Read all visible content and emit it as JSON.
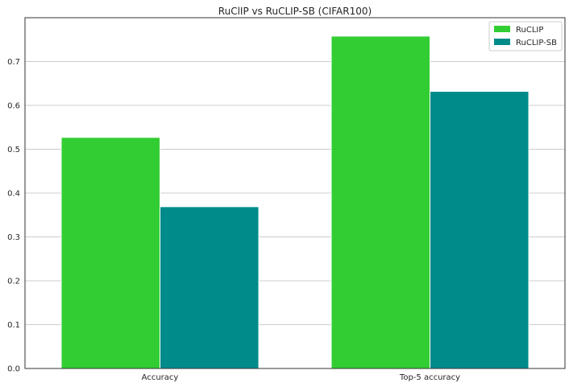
{
  "chart_data": {
    "type": "bar",
    "title": "RuClIP vs RuCLIP-SB (CIFAR100)",
    "xlabel": "",
    "ylabel": "",
    "categories": [
      "Accuracy",
      "Top-5 accuracy"
    ],
    "series": [
      {
        "name": "RuCLIP",
        "values": [
          0.527,
          0.758
        ],
        "color": "#32cd32"
      },
      {
        "name": "RuCLIP-SB",
        "values": [
          0.369,
          0.632
        ],
        "color": "#008b8b"
      }
    ],
    "ylim": [
      0,
      0.8
    ],
    "yticks": [
      "0.0",
      "0.1",
      "0.2",
      "0.3",
      "0.4",
      "0.5",
      "0.6",
      "0.7"
    ],
    "grid": "y",
    "legend_position": "top-right"
  }
}
